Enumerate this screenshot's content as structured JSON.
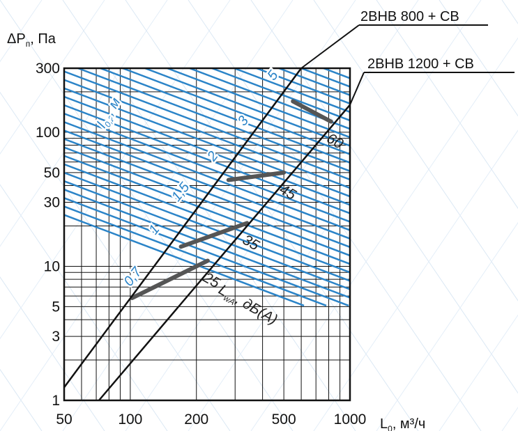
{
  "chart_data": {
    "type": "line",
    "x_scale": "log",
    "y_scale": "log",
    "xlim": [
      50,
      1000
    ],
    "ylim": [
      1,
      300
    ],
    "xlabel": "L",
    "xlabel_sub": "0",
    "xlabel_unit": ", м³/ч",
    "ylabel": "ΔP",
    "ylabel_sub": "п",
    "ylabel_unit": ", Па",
    "x_ticks": [
      50,
      100,
      200,
      500,
      1000
    ],
    "x_tick_labels": [
      "50",
      "100",
      "200",
      "500",
      "1000"
    ],
    "y_ticks": [
      1,
      3,
      5,
      10,
      30,
      50,
      100,
      300
    ],
    "y_tick_labels": [
      "1",
      "3",
      "5",
      "10",
      "30",
      "50",
      "100",
      "300"
    ],
    "x_grid": [
      50,
      60,
      70,
      80,
      90,
      100,
      200,
      300,
      400,
      500,
      600,
      700,
      800,
      900,
      1000
    ],
    "y_grid": [
      1,
      2,
      3,
      4,
      5,
      6,
      7,
      8,
      9,
      10,
      20,
      30,
      40,
      50,
      60,
      70,
      80,
      90,
      100,
      200,
      300
    ],
    "grid": true,
    "series": [
      {
        "name": "2BHB 800 + CB",
        "color": "#111111",
        "x": [
          50,
          600
        ],
        "y": [
          1.25,
          300
        ]
      },
      {
        "name": "2BHB 1200  + CB",
        "color": "#111111",
        "x": [
          72,
          1000
        ],
        "y": [
          1,
          160
        ]
      }
    ],
    "throw_lines": {
      "name": "l0,2, м",
      "name_main": "l",
      "name_sub": "0,2",
      "name_unit": ", м",
      "color": "#2b84c8",
      "labels": [
        "0,7",
        "1",
        "1,5",
        "2",
        "3",
        "5"
      ],
      "label_points": [
        {
          "text": "0,7",
          "x": 100,
          "y": 7.0
        },
        {
          "text": "1",
          "x": 130,
          "y": 17
        },
        {
          "text": "1,5",
          "x": 165,
          "y": 30
        },
        {
          "text": "2",
          "x": 240,
          "y": 60
        },
        {
          "text": "3",
          "x": 330,
          "y": 110
        },
        {
          "text": "5",
          "x": 450,
          "y": 240
        }
      ]
    },
    "noise_lines": {
      "name": "LwA, дБ(A)",
      "name_main": "L",
      "name_sub": "wA",
      "name_unit": ", дБ(A)",
      "color": "#555555",
      "segments": [
        {
          "label": "25",
          "x": [
            102,
            225
          ],
          "y": [
            5.8,
            11
          ]
        },
        {
          "label": "35",
          "x": [
            170,
            340
          ],
          "y": [
            14,
            21
          ]
        },
        {
          "label": "45",
          "x": [
            280,
            500
          ],
          "y": [
            44,
            50
          ]
        },
        {
          "label": "60",
          "x": [
            550,
            820
          ],
          "y": [
            170,
            120
          ]
        }
      ]
    },
    "annotations": [
      "2BHB 800 + CB",
      "2BHB 1200  + CB",
      "LwA, дБ(A)",
      "l0,2, м"
    ]
  }
}
